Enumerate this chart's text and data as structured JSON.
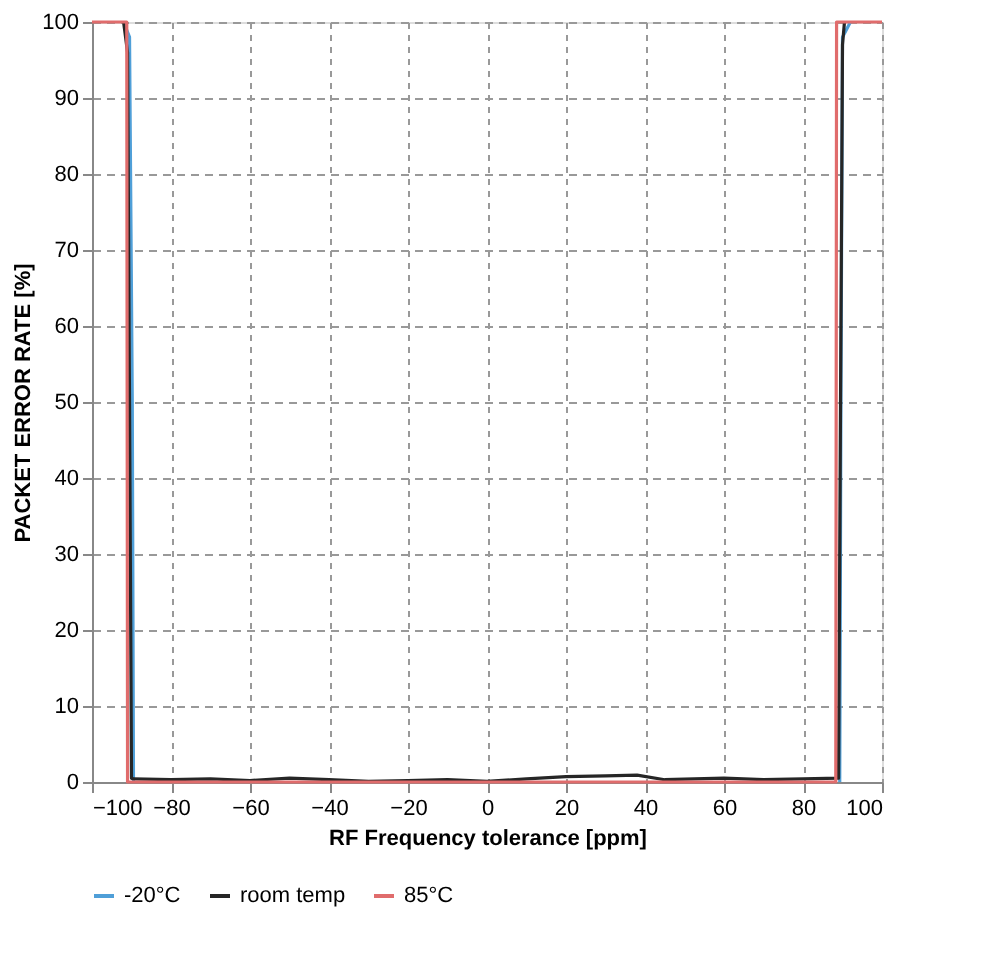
{
  "chart_data": {
    "type": "line",
    "xlabel": "RF Frequency tolerance [ppm]",
    "ylabel": "PACKET ERROR RATE [%]",
    "xlim": [
      -100,
      100
    ],
    "xticks": [
      -100,
      -80,
      -60,
      -40,
      -20,
      0,
      20,
      40,
      60,
      80,
      100
    ],
    "ylim": [
      0,
      100
    ],
    "yticks": [
      0,
      10,
      20,
      30,
      40,
      50,
      60,
      70,
      80,
      90,
      100
    ],
    "grid": true,
    "legend": "bottom",
    "marker": "none",
    "line_style": "solid",
    "series": [
      {
        "name": "-20°C",
        "color": "#4f9fd8",
        "x": [
          -92,
          -90.5,
          -89.8,
          -89.5,
          -80,
          -60,
          -40,
          -20,
          0,
          20,
          40,
          60,
          80,
          89.3,
          89.6,
          90,
          92
        ],
        "values": [
          100,
          98,
          50,
          0,
          null,
          null,
          null,
          null,
          null,
          null,
          null,
          null,
          null,
          0,
          50,
          98,
          100
        ]
      },
      {
        "name": "room temp",
        "color": "#262626",
        "x": [
          -92,
          -91,
          -90.5,
          -90,
          -89.5,
          -80,
          -70,
          -60,
          -50,
          -40,
          -30,
          -20,
          -10,
          0,
          10,
          20,
          30,
          38,
          45,
          60,
          70,
          80,
          89,
          89.5,
          90,
          90.5
        ],
        "values": [
          100,
          96,
          50,
          0.5,
          0.4,
          0.3,
          0.4,
          0.2,
          0.5,
          0.3,
          0.1,
          0.2,
          0.3,
          0.1,
          0.4,
          0.7,
          0.8,
          0.9,
          0.3,
          0.5,
          0.3,
          0.4,
          0.5,
          50,
          97,
          100
        ]
      },
      {
        "name": "85°C",
        "color": "#e06c6c",
        "x": [
          -100,
          -91.2,
          -91,
          -80,
          -40,
          0,
          40,
          80,
          88.3,
          88.5,
          100
        ],
        "values": [
          100,
          100,
          0,
          0,
          0,
          0,
          0,
          0,
          0,
          100,
          100
        ]
      }
    ]
  }
}
